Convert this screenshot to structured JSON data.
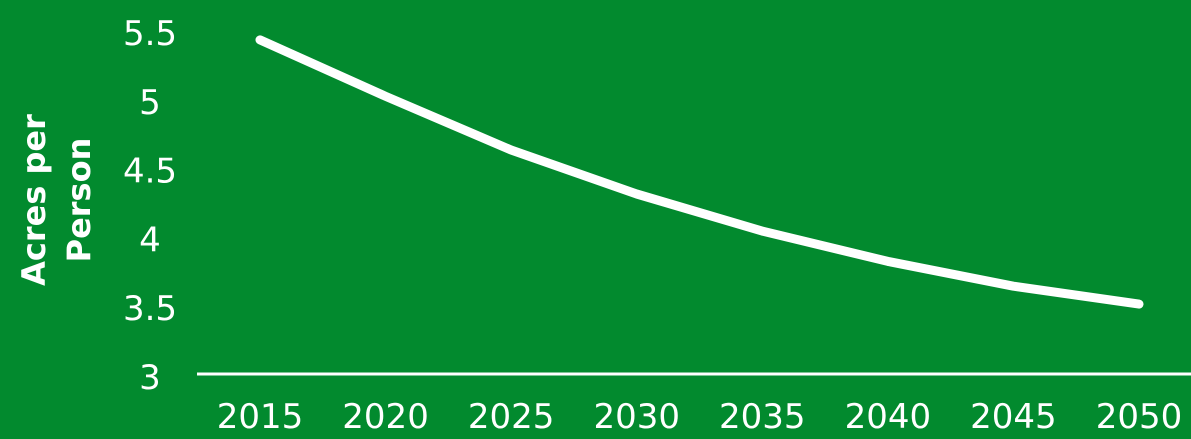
{
  "colors": {
    "background": "#028a2e",
    "line": "#ffffff",
    "text": "#ffffff"
  },
  "chart_data": {
    "type": "line",
    "title": "",
    "xlabel": "",
    "ylabel": "Acres per Person",
    "ylabel_lines": [
      "Acres per",
      "Person"
    ],
    "x": [
      2015,
      2020,
      2025,
      2030,
      2035,
      2040,
      2045,
      2050
    ],
    "y_tick_labels": [
      "3",
      "3.5",
      "4",
      "4.5",
      "5",
      "5.5"
    ],
    "ylim": [
      3,
      5.5
    ],
    "grid": false,
    "series": [
      {
        "values": [
          5.45,
          5.04,
          4.65,
          4.33,
          4.06,
          3.84,
          3.66,
          3.53
        ]
      }
    ]
  }
}
